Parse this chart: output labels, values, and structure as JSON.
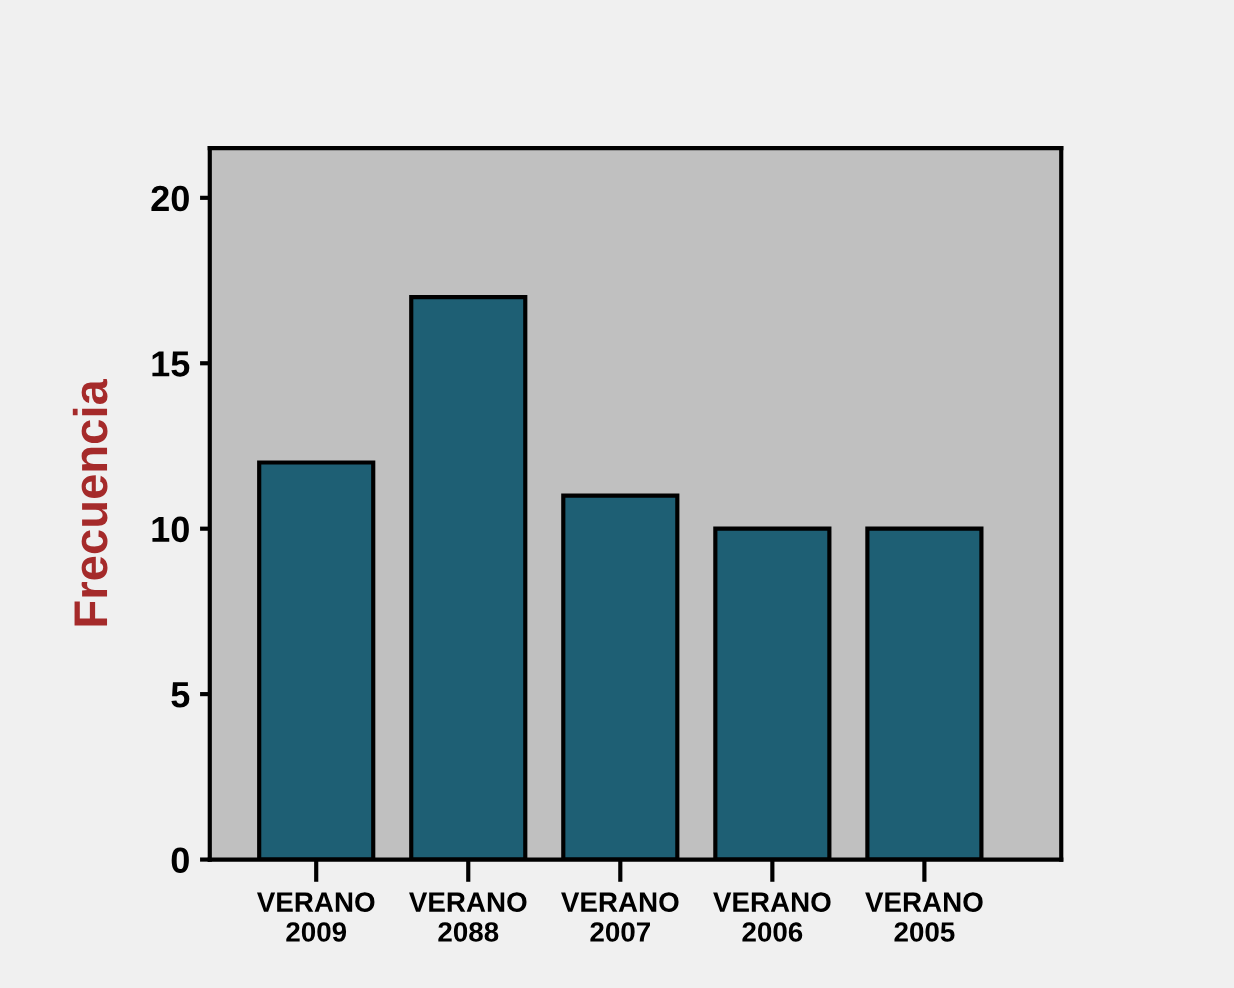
{
  "chart_data": {
    "type": "bar",
    "ylabel": "Frecuencia",
    "categories": [
      "VERANO\n2009",
      "VERANO\n2088",
      "VERANO\n2007",
      "VERANO\n2006",
      "VERANO\n2005"
    ],
    "values": [
      12,
      17,
      11,
      10,
      10
    ],
    "color": "#1e5f74",
    "ylim": [
      0,
      21.5
    ],
    "yticks": [
      0,
      5,
      10,
      15,
      20
    ]
  }
}
